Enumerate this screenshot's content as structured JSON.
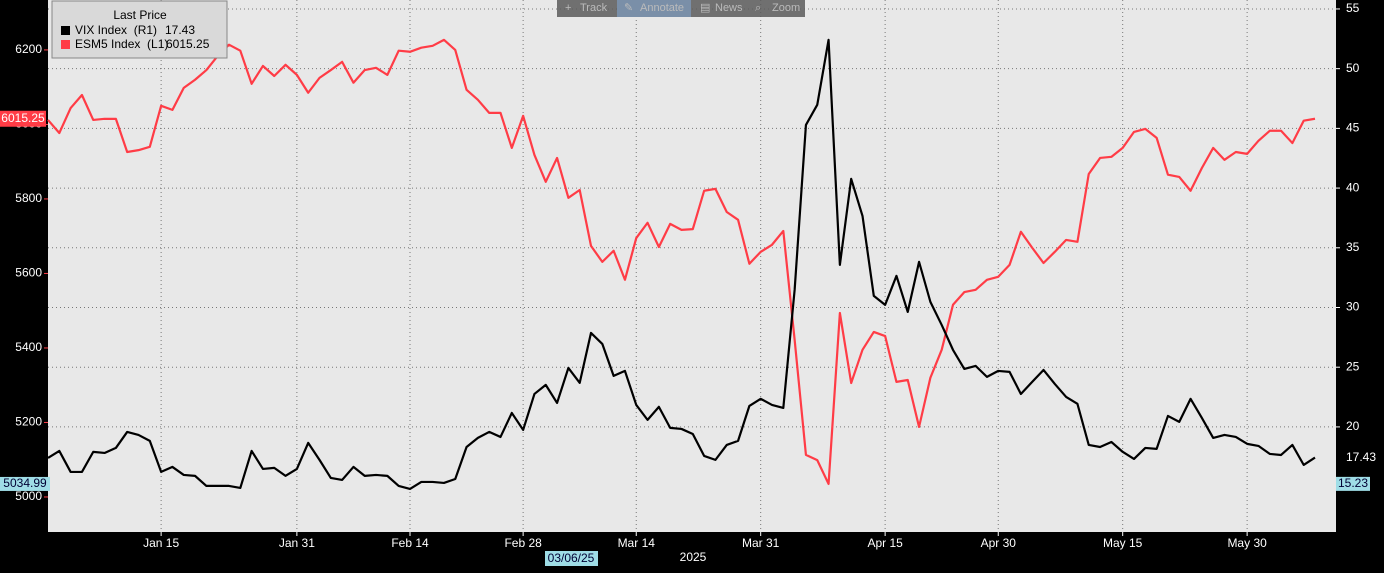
{
  "toolbar": [
    "Track",
    "Annotate",
    "News",
    "Zoom"
  ],
  "chart_data": {
    "type": "line",
    "legend_title": "Last Price",
    "x_label": "2025",
    "crosshair_label": "03/06/25",
    "categories": [
      null,
      null,
      null,
      null,
      null,
      null,
      null,
      null,
      null,
      null,
      "Jan 15",
      null,
      null,
      null,
      null,
      null,
      null,
      null,
      null,
      null,
      null,
      null,
      "Jan 31",
      null,
      null,
      null,
      null,
      null,
      null,
      null,
      null,
      null,
      "Feb 14",
      null,
      null,
      null,
      null,
      null,
      null,
      null,
      null,
      null,
      "Feb 28",
      null,
      null,
      null,
      null,
      null,
      null,
      null,
      null,
      null,
      "Mar 14",
      null,
      null,
      null,
      null,
      null,
      null,
      null,
      null,
      null,
      null,
      "Mar 31",
      null,
      null,
      null,
      null,
      null,
      null,
      null,
      null,
      null,
      null,
      "Apr 15",
      null,
      null,
      null,
      null,
      null,
      null,
      null,
      null,
      null,
      "Apr 30",
      null,
      null,
      null,
      null,
      null,
      null,
      null,
      null,
      null,
      null,
      "May 15",
      null,
      null,
      null,
      null,
      null,
      null,
      null,
      null,
      null,
      null,
      "May 30",
      null,
      null,
      null,
      null,
      null,
      null
    ],
    "series": [
      {
        "name": "VIX Index  (R1)",
        "color": "#000000",
        "axis": "y2",
        "values": [
          17.4,
          17.99,
          16.23,
          16.23,
          17.91,
          17.82,
          18.24,
          19.58,
          19.33,
          18.83,
          16.23,
          16.65,
          15.98,
          15.9,
          15.06,
          15.06,
          15.06,
          14.89,
          17.99,
          16.48,
          16.57,
          15.9,
          16.48,
          18.66,
          17.24,
          15.73,
          15.56,
          16.65,
          15.9,
          15.98,
          15.9,
          15.06,
          14.81,
          15.39,
          15.39,
          15.31,
          15.64,
          18.32,
          19.08,
          19.58,
          19.16,
          21.17,
          19.75,
          22.76,
          23.52,
          22.01,
          24.94,
          23.69,
          27.87,
          26.95,
          24.27,
          24.69,
          21.84,
          20.59,
          21.68,
          19.92,
          19.83,
          19.41,
          17.57,
          17.24,
          18.49,
          18.83,
          21.76,
          22.35,
          21.84,
          21.59,
          31.47,
          45.29,
          46.97,
          52.41,
          33.57,
          40.77,
          37.67,
          30.97,
          30.22,
          32.65,
          29.63,
          33.82,
          30.47,
          28.54,
          26.45,
          24.86,
          25.11,
          24.19,
          24.69,
          24.61,
          22.76,
          23.77,
          24.77,
          23.6,
          22.51,
          21.93,
          18.49,
          18.32,
          18.74,
          17.91,
          17.32,
          18.24,
          18.16,
          20.92,
          20.42,
          22.35,
          20.75,
          19.08,
          19.33,
          19.16,
          18.58,
          18.41,
          17.74,
          17.65,
          18.49,
          16.82,
          17.43
        ]
      },
      {
        "name": "ESM5 Index  (L1)",
        "color": "#ff3c46",
        "values": [
          6012,
          5977,
          6044,
          6079,
          6012,
          6015,
          6015,
          5926,
          5931,
          5940,
          6050,
          6039,
          6098,
          6120,
          6146,
          6184,
          6214,
          6198,
          6109,
          6157,
          6130,
          6160,
          6133,
          6085,
          6125,
          6146,
          6168,
          6112,
          6146,
          6152,
          6133,
          6198,
          6195,
          6206,
          6211,
          6227,
          6200,
          6093,
          6066,
          6031,
          6031,
          5937,
          6023,
          5918,
          5846,
          5910,
          5803,
          5824,
          5674,
          5631,
          5661,
          5583,
          5695,
          5736,
          5671,
          5733,
          5717,
          5719,
          5822,
          5827,
          5765,
          5744,
          5626,
          5658,
          5677,
          5714,
          5422,
          5113,
          5099,
          5035,
          5494,
          5306,
          5395,
          5443,
          5432,
          5309,
          5314,
          5188,
          5320,
          5395,
          5516,
          5550,
          5556,
          5583,
          5591,
          5623,
          5712,
          5669,
          5628,
          5658,
          5690,
          5685,
          5867,
          5910,
          5913,
          5937,
          5980,
          5988,
          5964,
          5865,
          5859,
          5822,
          5883,
          5937,
          5905,
          5926,
          5921,
          5956,
          5983,
          5983,
          5950,
          6010,
          6015.25
        ]
      }
    ],
    "ylim": [
      4906,
      6334
    ],
    "yticks": [
      5000,
      5200,
      5400,
      5600,
      5800,
      6000,
      6200
    ],
    "y2lim": [
      11.2,
      55.75
    ],
    "y2ticks": [
      20,
      25,
      30,
      35,
      40,
      45,
      50,
      55
    ],
    "markers": {
      "left": 5034.99,
      "right": 15.23
    },
    "grid": true
  }
}
